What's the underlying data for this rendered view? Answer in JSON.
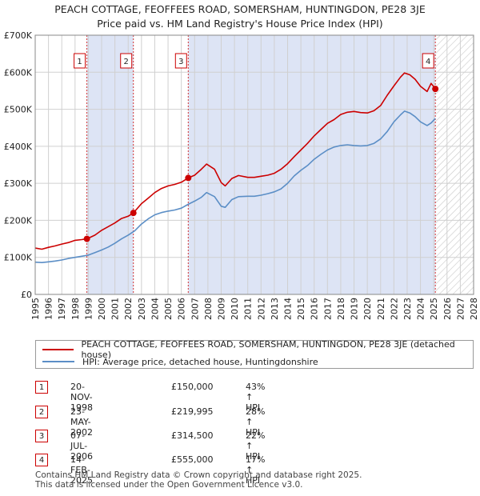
{
  "title_line1": "PEACH COTTAGE, FEOFFEES ROAD, SOMERSHAM, HUNTINGDON, PE28 3JE",
  "title_line2": "Price paid vs. HM Land Registry's House Price Index (HPI)",
  "legend": {
    "property": "PEACH COTTAGE, FEOFFEES ROAD, SOMERSHAM, HUNTINGDON, PE28 3JE (detached house)",
    "hpi": "HPI: Average price, detached house, Huntingdonshire"
  },
  "transactions": [
    {
      "num": "1",
      "date": "20-NOV-1998",
      "price": "£150,000",
      "hpi": "43% ↑ HPI"
    },
    {
      "num": "2",
      "date": "23-MAY-2002",
      "price": "£219,995",
      "hpi": "28% ↑ HPI"
    },
    {
      "num": "3",
      "date": "07-JUL-2006",
      "price": "£314,500",
      "hpi": "22% ↑ HPI"
    },
    {
      "num": "4",
      "date": "14-FEB-2025",
      "price": "£555,000",
      "hpi": "17% ↑ HPI"
    }
  ],
  "footer": {
    "line1": "Contains HM Land Registry data © Crown copyright and database right 2025.",
    "line2": "This data is licensed under the Open Government Licence v3.0."
  },
  "colors": {
    "property": "#cc0000",
    "hpi": "#5b8ec6",
    "shade": "#dde4f5",
    "grid": "#d0d0d0"
  },
  "chart_data": {
    "type": "line",
    "xlim": [
      1995,
      2028
    ],
    "ylim": [
      0,
      700000
    ],
    "x_ticks": [
      "1995",
      "1996",
      "1997",
      "1998",
      "1999",
      "2000",
      "2001",
      "2002",
      "2003",
      "2004",
      "2005",
      "2006",
      "2007",
      "2008",
      "2009",
      "2010",
      "2011",
      "2012",
      "2013",
      "2014",
      "2015",
      "2016",
      "2017",
      "2018",
      "2019",
      "2020",
      "2021",
      "2022",
      "2023",
      "2024",
      "2025",
      "2026",
      "2027",
      "2028"
    ],
    "y_ticks": [
      {
        "value": 0,
        "label": "£0"
      },
      {
        "value": 100000,
        "label": "£100K"
      },
      {
        "value": 200000,
        "label": "£200K"
      },
      {
        "value": 300000,
        "label": "£300K"
      },
      {
        "value": 400000,
        "label": "£400K"
      },
      {
        "value": 500000,
        "label": "£500K"
      },
      {
        "value": 600000,
        "label": "£600K"
      },
      {
        "value": 700000,
        "label": "£700K"
      }
    ],
    "sales": [
      {
        "label": "1",
        "x": 1998.89,
        "y": 150000
      },
      {
        "label": "2",
        "x": 2002.39,
        "y": 219995
      },
      {
        "label": "3",
        "x": 2006.52,
        "y": 314500
      },
      {
        "label": "4",
        "x": 2025.12,
        "y": 555000
      }
    ],
    "shaded_ranges": [
      [
        1998.89,
        2002.39
      ],
      [
        2006.52,
        2025.12
      ]
    ],
    "future_from": 2025.12,
    "series": [
      {
        "name": "PEACH COTTAGE, FEOFFEES ROAD, SOMERSHAM, HUNTINGDON, PE28 3JE (detached house)",
        "color": "#cc0000",
        "x": [
          1995.0,
          1995.5,
          1996.0,
          1996.5,
          1997.0,
          1997.5,
          1998.0,
          1998.5,
          1998.89,
          1999.5,
          2000.0,
          2000.5,
          2001.0,
          2001.5,
          2002.0,
          2002.39,
          2003.0,
          2003.5,
          2004.0,
          2004.5,
          2005.0,
          2005.5,
          2006.0,
          2006.52,
          2007.0,
          2007.5,
          2007.9,
          2008.5,
          2009.0,
          2009.3,
          2009.8,
          2010.3,
          2011.0,
          2011.5,
          2012.0,
          2012.5,
          2013.0,
          2013.5,
          2014.0,
          2014.5,
          2015.0,
          2015.5,
          2016.0,
          2016.5,
          2017.0,
          2017.5,
          2018.0,
          2018.5,
          2019.0,
          2019.5,
          2020.0,
          2020.5,
          2021.0,
          2021.5,
          2022.0,
          2022.5,
          2022.8,
          2023.2,
          2023.6,
          2024.0,
          2024.5,
          2024.8,
          2025.12
        ],
        "y": [
          125000,
          122000,
          127000,
          131000,
          136000,
          140000,
          146000,
          148000,
          150000,
          160000,
          173000,
          183000,
          193000,
          205000,
          211000,
          219995,
          245000,
          260000,
          275000,
          286000,
          293000,
          297000,
          303000,
          314500,
          322000,
          338000,
          352000,
          338000,
          302000,
          293000,
          313000,
          321000,
          316000,
          316000,
          319000,
          322000,
          327000,
          338000,
          353000,
          372000,
          390000,
          408000,
          428000,
          445000,
          462000,
          472000,
          486000,
          492000,
          494000,
          491000,
          490000,
          496000,
          510000,
          538000,
          563000,
          587000,
          598000,
          593000,
          581000,
          562000,
          548000,
          570000,
          555000
        ]
      },
      {
        "name": "HPI: Average price, detached house, Huntingdonshire",
        "color": "#5b8ec6",
        "x": [
          1995.0,
          1995.5,
          1996.0,
          1996.5,
          1997.0,
          1997.5,
          1998.0,
          1998.5,
          1999.0,
          1999.5,
          2000.0,
          2000.5,
          2001.0,
          2001.5,
          2002.0,
          2002.5,
          2003.0,
          2003.5,
          2004.0,
          2004.5,
          2005.0,
          2005.5,
          2006.0,
          2006.5,
          2007.0,
          2007.5,
          2007.9,
          2008.5,
          2009.0,
          2009.3,
          2009.8,
          2010.3,
          2011.0,
          2011.5,
          2012.0,
          2012.5,
          2013.0,
          2013.5,
          2014.0,
          2014.5,
          2015.0,
          2015.5,
          2016.0,
          2016.5,
          2017.0,
          2017.5,
          2018.0,
          2018.5,
          2019.0,
          2019.5,
          2020.0,
          2020.5,
          2021.0,
          2021.5,
          2022.0,
          2022.5,
          2022.8,
          2023.2,
          2023.6,
          2024.0,
          2024.5,
          2024.8,
          2025.12
        ],
        "y": [
          87000,
          86000,
          88000,
          90000,
          93000,
          97000,
          100000,
          103000,
          106000,
          113000,
          120000,
          128000,
          138000,
          150000,
          160000,
          172000,
          190000,
          204000,
          215000,
          221000,
          225000,
          228000,
          233000,
          243000,
          252000,
          262000,
          275000,
          264000,
          238000,
          235000,
          256000,
          264000,
          265000,
          265000,
          268000,
          272000,
          277000,
          285000,
          300000,
          320000,
          335000,
          348000,
          365000,
          378000,
          390000,
          398000,
          402000,
          404000,
          402000,
          401000,
          402000,
          408000,
          420000,
          440000,
          466000,
          485000,
          495000,
          490000,
          480000,
          466000,
          456000,
          463000,
          475000
        ]
      }
    ]
  }
}
